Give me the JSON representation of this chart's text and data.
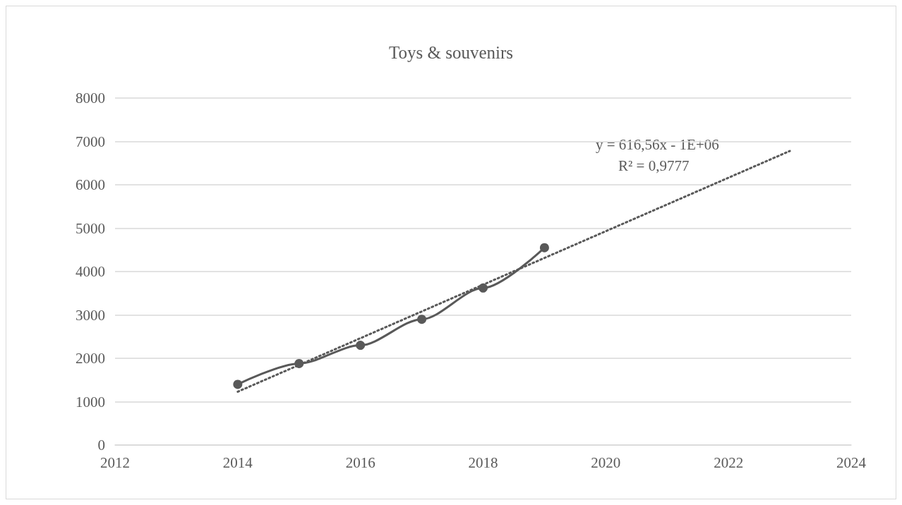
{
  "chart_data": {
    "type": "line",
    "title": "Toys & souvenirs",
    "x": [
      2014,
      2015,
      2016,
      2017,
      2018,
      2019
    ],
    "series": [
      {
        "color": "#595959",
        "values": [
          1400,
          1880,
          2300,
          2900,
          3620,
          4550
        ],
        "marker": "circle",
        "line_style": "solid"
      },
      {
        "type": "line",
        "color": "#595959",
        "x": [
          2014,
          2023
        ],
        "values": [
          1230,
          6780
        ],
        "marker": "none",
        "line_style": "dotted"
      }
    ],
    "xlim": [
      2012,
      2024
    ],
    "xticks": [
      2012,
      2014,
      2016,
      2018,
      2020,
      2022,
      2024
    ],
    "ylim": [
      0,
      8000
    ],
    "yticks": [
      0,
      1000,
      2000,
      3000,
      4000,
      5000,
      6000,
      7000,
      8000
    ],
    "grid": "y",
    "annotations": [
      "y = 616,56x - 1E+06",
      "R² = 0,9777"
    ]
  }
}
